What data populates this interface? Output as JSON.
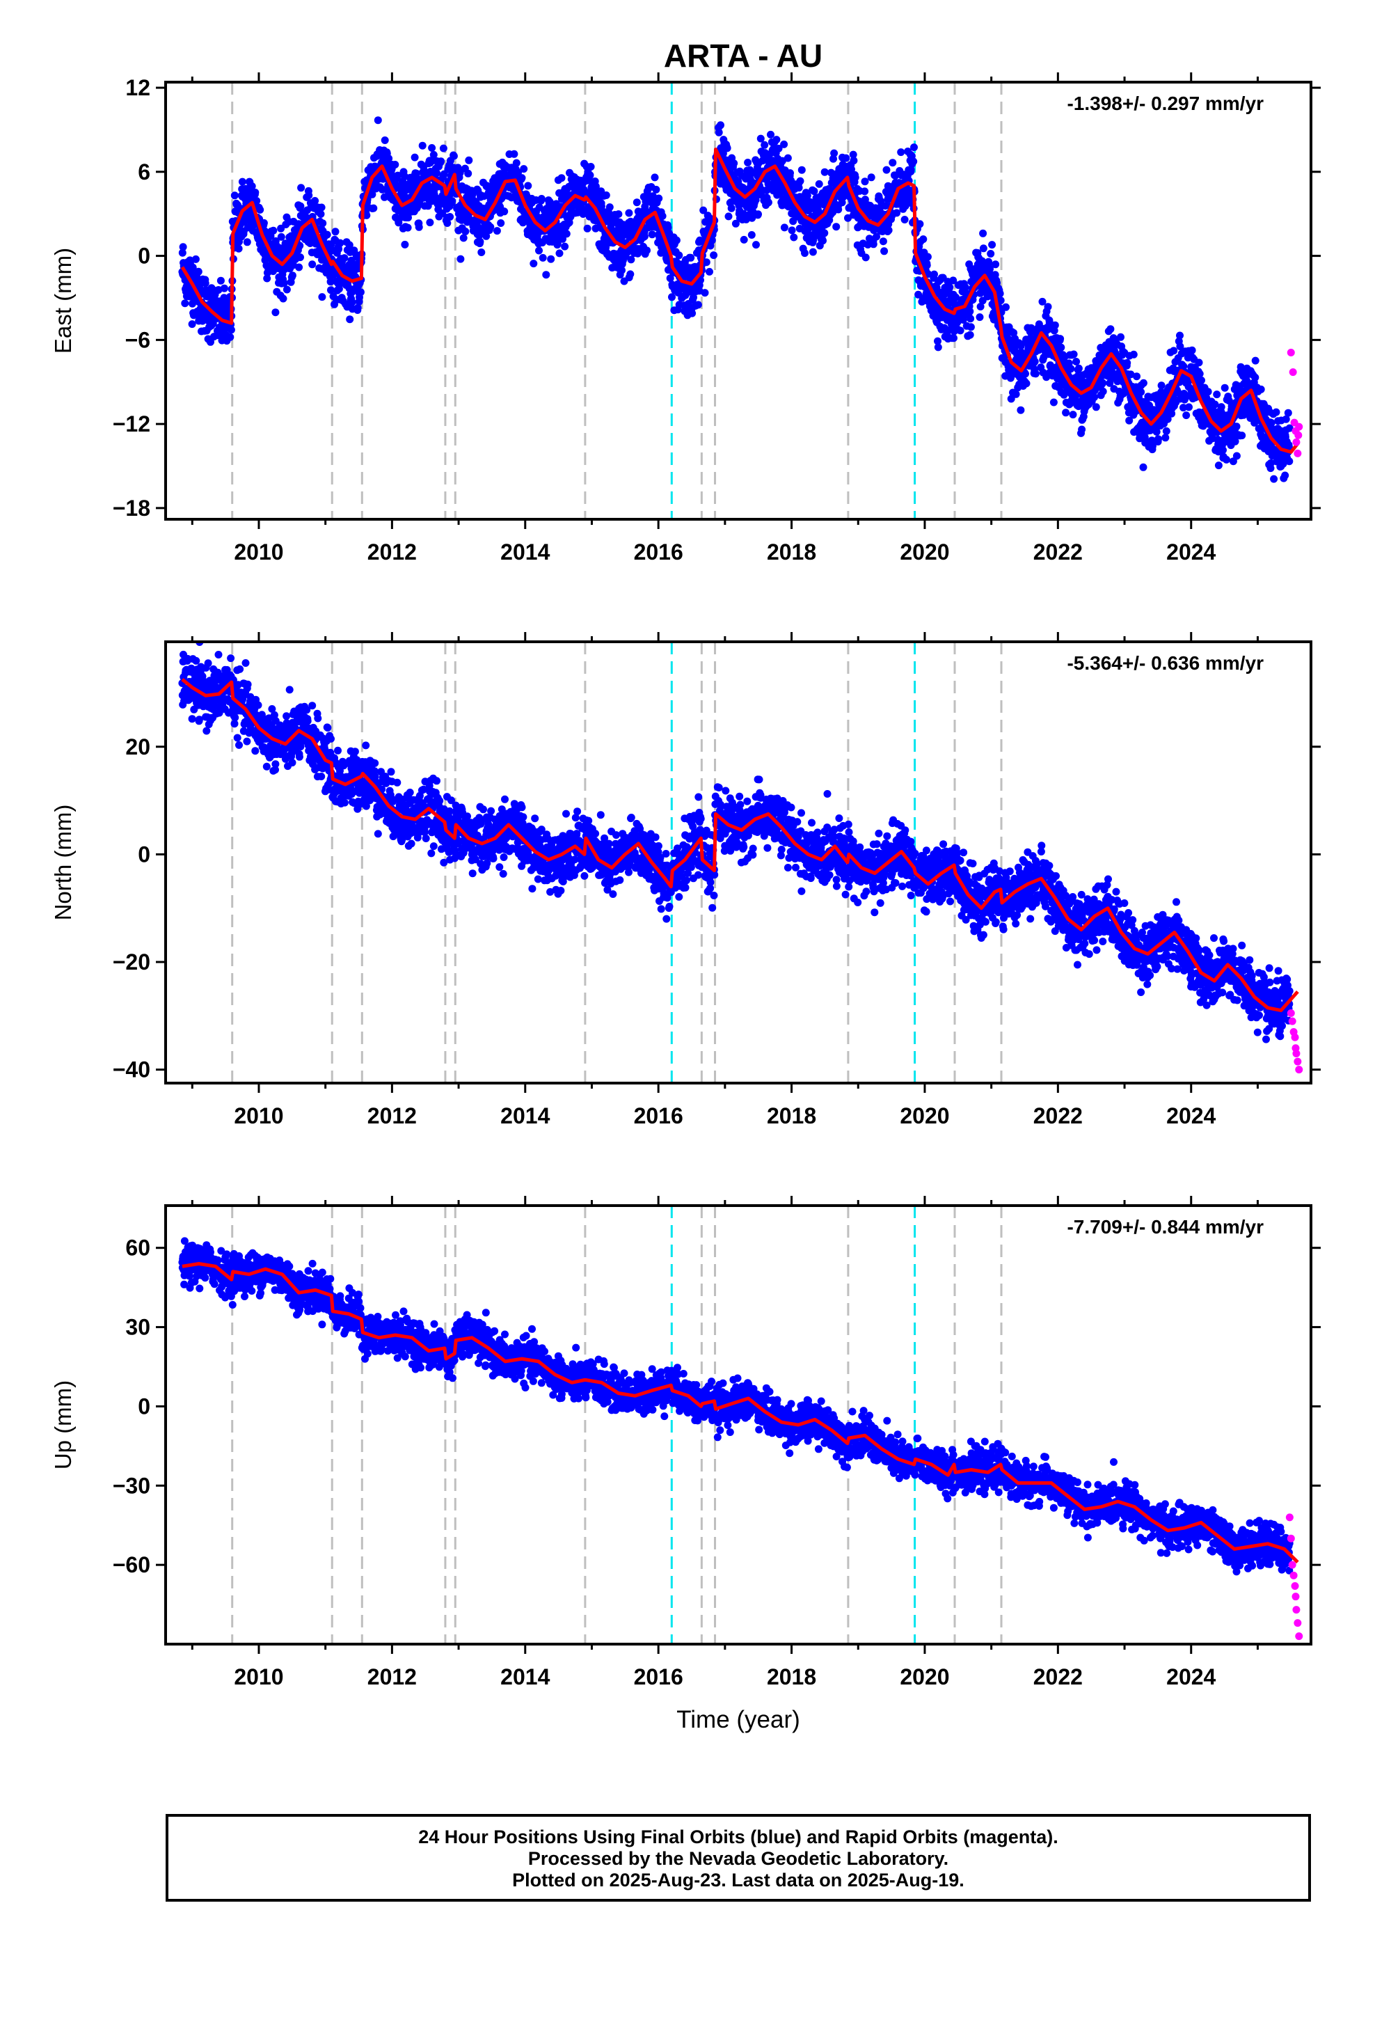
{
  "title": "ARTA - AU",
  "colors": {
    "final_points": "#0000ff",
    "rapid_points": "#ff00ff",
    "model_line": "#ff0000",
    "offset_gray": "#bfbfbf",
    "offset_cyan": "#00e5ee"
  },
  "footer": {
    "line1": "24 Hour Positions Using Final Orbits (blue) and Rapid Orbits (magenta).",
    "line2": "Processed by the Nevada Geodetic Laboratory.",
    "line3": "Plotted on 2025-Aug-23. Last data on 2025-Aug-19."
  },
  "chart_data": [
    {
      "type": "scatter",
      "name_key": "east",
      "ylabel": "East (mm)",
      "xlabel": "",
      "rate_label": "-1.398+/- 0.297 mm/yr",
      "xlim": [
        2008.6,
        2025.8
      ],
      "ylim": [
        -18.8,
        12.4
      ],
      "xticks": [
        2010,
        2012,
        2014,
        2016,
        2018,
        2020,
        2022,
        2024
      ],
      "yticks": [
        -18,
        -12,
        -6,
        0,
        6,
        12
      ],
      "ytick_labels": [
        "−18",
        "−12",
        "−6",
        "0",
        "6",
        "12"
      ],
      "grid": false,
      "offsets_gray": [
        2009.6,
        2011.1,
        2011.55,
        2012.8,
        2012.95,
        2014.9,
        2016.65,
        2016.85,
        2018.85,
        2020.45,
        2021.15
      ],
      "offsets_cyan": [
        2016.2,
        2019.85
      ],
      "model_line": {
        "x": [
          2008.85,
          2009.0,
          2009.15,
          2009.3,
          2009.45,
          2009.59,
          2009.61,
          2009.75,
          2009.9,
          2010.05,
          2010.2,
          2010.35,
          2010.5,
          2010.65,
          2010.8,
          2010.95,
          2011.09,
          2011.11,
          2011.25,
          2011.4,
          2011.54,
          2011.56,
          2011.7,
          2011.85,
          2012.0,
          2012.15,
          2012.3,
          2012.45,
          2012.6,
          2012.79,
          2012.81,
          2012.94,
          2012.96,
          2013.1,
          2013.25,
          2013.4,
          2013.55,
          2013.7,
          2013.85,
          2014.0,
          2014.15,
          2014.3,
          2014.45,
          2014.6,
          2014.75,
          2014.89,
          2014.91,
          2015.05,
          2015.2,
          2015.35,
          2015.5,
          2015.65,
          2015.8,
          2015.95,
          2016.1,
          2016.19,
          2016.21,
          2016.35,
          2016.5,
          2016.64,
          2016.66,
          2016.84,
          2016.86,
          2017.0,
          2017.15,
          2017.3,
          2017.45,
          2017.6,
          2017.75,
          2017.9,
          2018.05,
          2018.2,
          2018.35,
          2018.5,
          2018.65,
          2018.84,
          2018.86,
          2019.0,
          2019.15,
          2019.3,
          2019.45,
          2019.6,
          2019.75,
          2019.84,
          2019.86,
          2020.0,
          2020.15,
          2020.3,
          2020.44,
          2020.46,
          2020.6,
          2020.75,
          2020.9,
          2021.05,
          2021.14,
          2021.16,
          2021.3,
          2021.45,
          2021.6,
          2021.75,
          2021.9,
          2022.05,
          2022.2,
          2022.35,
          2022.5,
          2022.65,
          2022.8,
          2022.95,
          2023.1,
          2023.25,
          2023.4,
          2023.55,
          2023.7,
          2023.85,
          2024.0,
          2024.15,
          2024.3,
          2024.45,
          2024.6,
          2024.75,
          2024.9,
          2025.05,
          2025.2,
          2025.35,
          2025.5,
          2025.6
        ],
        "y": [
          -0.8,
          -2.0,
          -3.3,
          -4.0,
          -4.6,
          -4.8,
          1.6,
          3.2,
          3.8,
          1.5,
          0.0,
          -0.6,
          0.2,
          2.0,
          2.6,
          0.8,
          -0.6,
          -0.4,
          -1.4,
          -1.8,
          -1.6,
          3.6,
          5.6,
          6.4,
          4.8,
          3.6,
          4.0,
          5.2,
          5.6,
          5.0,
          4.4,
          5.8,
          4.8,
          3.6,
          2.9,
          2.6,
          3.8,
          5.3,
          5.4,
          3.6,
          2.4,
          1.8,
          2.4,
          3.6,
          4.3,
          4.0,
          4.2,
          3.4,
          2.0,
          1.0,
          0.6,
          1.2,
          2.6,
          3.1,
          1.2,
          0.0,
          -0.8,
          -1.8,
          -2.0,
          -1.2,
          0.2,
          2.4,
          7.6,
          6.2,
          4.8,
          4.2,
          4.8,
          6.0,
          6.4,
          5.2,
          3.8,
          2.8,
          2.4,
          3.0,
          4.6,
          5.6,
          5.0,
          3.4,
          2.5,
          2.2,
          3.0,
          4.8,
          5.2,
          5.0,
          0.2,
          -1.5,
          -2.9,
          -3.8,
          -4.1,
          -3.8,
          -3.6,
          -2.2,
          -1.4,
          -2.6,
          -5.0,
          -5.8,
          -7.6,
          -8.2,
          -7.0,
          -5.5,
          -6.4,
          -8.0,
          -9.2,
          -9.8,
          -9.4,
          -8.0,
          -7.0,
          -8.0,
          -9.8,
          -11.2,
          -12.0,
          -11.2,
          -9.8,
          -8.2,
          -8.6,
          -10.4,
          -11.8,
          -12.5,
          -12.0,
          -10.2,
          -9.6,
          -11.6,
          -13.0,
          -13.8,
          -14.0,
          -13.4
        ]
      },
      "rapid_points": {
        "x": [
          2025.5,
          2025.53,
          2025.55,
          2025.57,
          2025.58,
          2025.6,
          2025.61,
          2025.62
        ],
        "y": [
          -6.9,
          -8.3,
          -11.9,
          -12.5,
          -13.3,
          -14.1,
          -12.8,
          -12.2
        ]
      }
    },
    {
      "type": "scatter",
      "name_key": "north",
      "ylabel": "North (mm)",
      "xlabel": "",
      "rate_label": "-5.364+/- 0.636 mm/yr",
      "xlim": [
        2008.6,
        2025.8
      ],
      "ylim": [
        -42.5,
        39.5
      ],
      "xticks": [
        2010,
        2012,
        2014,
        2016,
        2018,
        2020,
        2022,
        2024
      ],
      "yticks": [
        -40,
        -20,
        0,
        20
      ],
      "ytick_labels": [
        "−40",
        "−20",
        "0",
        "20"
      ],
      "grid": false,
      "offsets_gray": [
        2009.6,
        2011.1,
        2011.55,
        2012.8,
        2012.95,
        2014.9,
        2016.65,
        2016.85,
        2018.85,
        2020.45,
        2021.15
      ],
      "offsets_cyan": [
        2016.2,
        2019.85
      ],
      "model_line": {
        "x": [
          2008.85,
          2009.0,
          2009.2,
          2009.4,
          2009.59,
          2009.61,
          2009.8,
          2010.0,
          2010.2,
          2010.4,
          2010.6,
          2010.8,
          2011.0,
          2011.09,
          2011.11,
          2011.3,
          2011.54,
          2011.56,
          2011.75,
          2011.95,
          2012.15,
          2012.35,
          2012.55,
          2012.79,
          2012.81,
          2012.94,
          2012.96,
          2013.15,
          2013.35,
          2013.55,
          2013.75,
          2013.95,
          2014.15,
          2014.35,
          2014.55,
          2014.75,
          2014.89,
          2014.91,
          2015.1,
          2015.3,
          2015.5,
          2015.7,
          2015.9,
          2016.1,
          2016.19,
          2016.21,
          2016.4,
          2016.64,
          2016.66,
          2016.84,
          2016.86,
          2017.05,
          2017.25,
          2017.45,
          2017.65,
          2017.85,
          2018.05,
          2018.25,
          2018.45,
          2018.65,
          2018.84,
          2018.86,
          2019.05,
          2019.25,
          2019.45,
          2019.65,
          2019.84,
          2019.86,
          2020.05,
          2020.25,
          2020.44,
          2020.46,
          2020.65,
          2020.85,
          2021.05,
          2021.14,
          2021.16,
          2021.35,
          2021.55,
          2021.75,
          2021.95,
          2022.15,
          2022.35,
          2022.55,
          2022.75,
          2022.95,
          2023.15,
          2023.35,
          2023.55,
          2023.75,
          2023.95,
          2024.15,
          2024.35,
          2024.55,
          2024.75,
          2024.95,
          2025.15,
          2025.35,
          2025.6
        ],
        "y": [
          32.5,
          31.0,
          29.5,
          29.8,
          32.0,
          29.0,
          27.0,
          23.5,
          21.5,
          20.5,
          23.0,
          21.5,
          17.5,
          17.0,
          14.0,
          13.0,
          14.5,
          15.0,
          12.5,
          9.0,
          7.0,
          6.5,
          8.5,
          6.0,
          4.5,
          3.0,
          5.5,
          3.0,
          2.0,
          3.0,
          5.5,
          3.0,
          0.5,
          -1.0,
          0.0,
          1.5,
          0.0,
          3.0,
          -1.0,
          -2.5,
          0.0,
          2.0,
          -1.5,
          -4.5,
          -6.0,
          -3.0,
          -1.0,
          3.0,
          -1.0,
          -3.0,
          7.5,
          5.5,
          4.5,
          6.5,
          7.5,
          5.0,
          2.0,
          0.0,
          -1.0,
          1.5,
          -1.5,
          0.0,
          -2.5,
          -3.5,
          -1.5,
          0.5,
          -2.5,
          -3.5,
          -5.5,
          -3.5,
          -2.0,
          -3.5,
          -7.5,
          -10.0,
          -7.0,
          -6.5,
          -9.0,
          -7.0,
          -5.5,
          -4.5,
          -8.0,
          -12.0,
          -14.0,
          -11.5,
          -10.0,
          -14.5,
          -17.5,
          -18.5,
          -16.5,
          -14.5,
          -18.0,
          -22.0,
          -23.5,
          -20.5,
          -23.0,
          -26.5,
          -28.5,
          -29.0,
          -25.5
        ]
      },
      "rapid_points": {
        "x": [
          2025.5,
          2025.52,
          2025.54,
          2025.56,
          2025.57,
          2025.58,
          2025.6,
          2025.62
        ],
        "y": [
          -29.5,
          -31.0,
          -33.0,
          -34.0,
          -36.0,
          -37.0,
          -38.5,
          -40.0
        ]
      }
    },
    {
      "type": "scatter",
      "name_key": "up",
      "ylabel": "Up (mm)",
      "xlabel": "Time (year)",
      "rate_label": "-7.709+/- 0.844 mm/yr",
      "xlim": [
        2008.6,
        2025.8
      ],
      "ylim": [
        -90,
        76
      ],
      "xticks": [
        2010,
        2012,
        2014,
        2016,
        2018,
        2020,
        2022,
        2024
      ],
      "yticks": [
        -60,
        -30,
        0,
        30,
        60
      ],
      "ytick_labels": [
        "−60",
        "−30",
        "0",
        "30",
        "60"
      ],
      "grid": false,
      "offsets_gray": [
        2009.6,
        2011.1,
        2011.55,
        2012.8,
        2012.95,
        2014.9,
        2016.65,
        2016.85,
        2018.85,
        2020.45,
        2021.15
      ],
      "offsets_cyan": [
        2016.2,
        2019.85
      ],
      "model_line": {
        "x": [
          2008.85,
          2009.1,
          2009.35,
          2009.59,
          2009.61,
          2009.85,
          2010.1,
          2010.35,
          2010.6,
          2010.85,
          2011.09,
          2011.11,
          2011.35,
          2011.54,
          2011.56,
          2011.8,
          2012.05,
          2012.3,
          2012.55,
          2012.79,
          2012.81,
          2012.94,
          2012.96,
          2013.2,
          2013.45,
          2013.7,
          2013.95,
          2014.2,
          2014.45,
          2014.7,
          2014.89,
          2014.91,
          2015.15,
          2015.4,
          2015.65,
          2015.9,
          2016.19,
          2016.21,
          2016.45,
          2016.64,
          2016.66,
          2016.84,
          2016.86,
          2017.1,
          2017.35,
          2017.6,
          2017.85,
          2018.1,
          2018.35,
          2018.6,
          2018.84,
          2018.86,
          2019.1,
          2019.35,
          2019.6,
          2019.84,
          2019.86,
          2020.1,
          2020.35,
          2020.44,
          2020.46,
          2020.7,
          2020.95,
          2021.14,
          2021.16,
          2021.4,
          2021.65,
          2021.9,
          2022.15,
          2022.4,
          2022.65,
          2022.9,
          2023.15,
          2023.4,
          2023.65,
          2023.9,
          2024.15,
          2024.4,
          2024.65,
          2024.9,
          2025.15,
          2025.4,
          2025.6
        ],
        "y": [
          53.0,
          54.0,
          53.0,
          48.0,
          51.0,
          50.0,
          52.0,
          50.0,
          43.0,
          44.0,
          42.0,
          36.0,
          35.0,
          33.0,
          28.0,
          26.0,
          27.0,
          26.0,
          21.0,
          22.0,
          18.0,
          20.0,
          25.0,
          26.0,
          22.0,
          17.0,
          18.0,
          17.0,
          12.0,
          9.0,
          10.0,
          10.0,
          9.0,
          5.0,
          4.0,
          6.0,
          8.0,
          6.0,
          4.0,
          0.0,
          1.0,
          2.0,
          -1.0,
          1.0,
          3.0,
          -2.0,
          -6.0,
          -7.0,
          -5.0,
          -9.0,
          -14.0,
          -12.0,
          -11.0,
          -16.0,
          -20.0,
          -22.0,
          -20.0,
          -22.0,
          -26.0,
          -22.0,
          -25.0,
          -24.0,
          -25.0,
          -22.0,
          -24.0,
          -29.0,
          -29.0,
          -29.0,
          -34.0,
          -39.0,
          -38.0,
          -36.0,
          -38.0,
          -43.0,
          -47.0,
          -46.0,
          -44.0,
          -49.0,
          -54.0,
          -53.0,
          -52.0,
          -54.0,
          -59.0
        ]
      },
      "rapid_points": {
        "x": [
          2025.48,
          2025.5,
          2025.52,
          2025.54,
          2025.56,
          2025.57,
          2025.58,
          2025.6,
          2025.62
        ],
        "y": [
          -42.0,
          -50.0,
          -60.0,
          -64.0,
          -68.0,
          -72.0,
          -77.0,
          -82.0,
          -87.0
        ]
      }
    }
  ]
}
